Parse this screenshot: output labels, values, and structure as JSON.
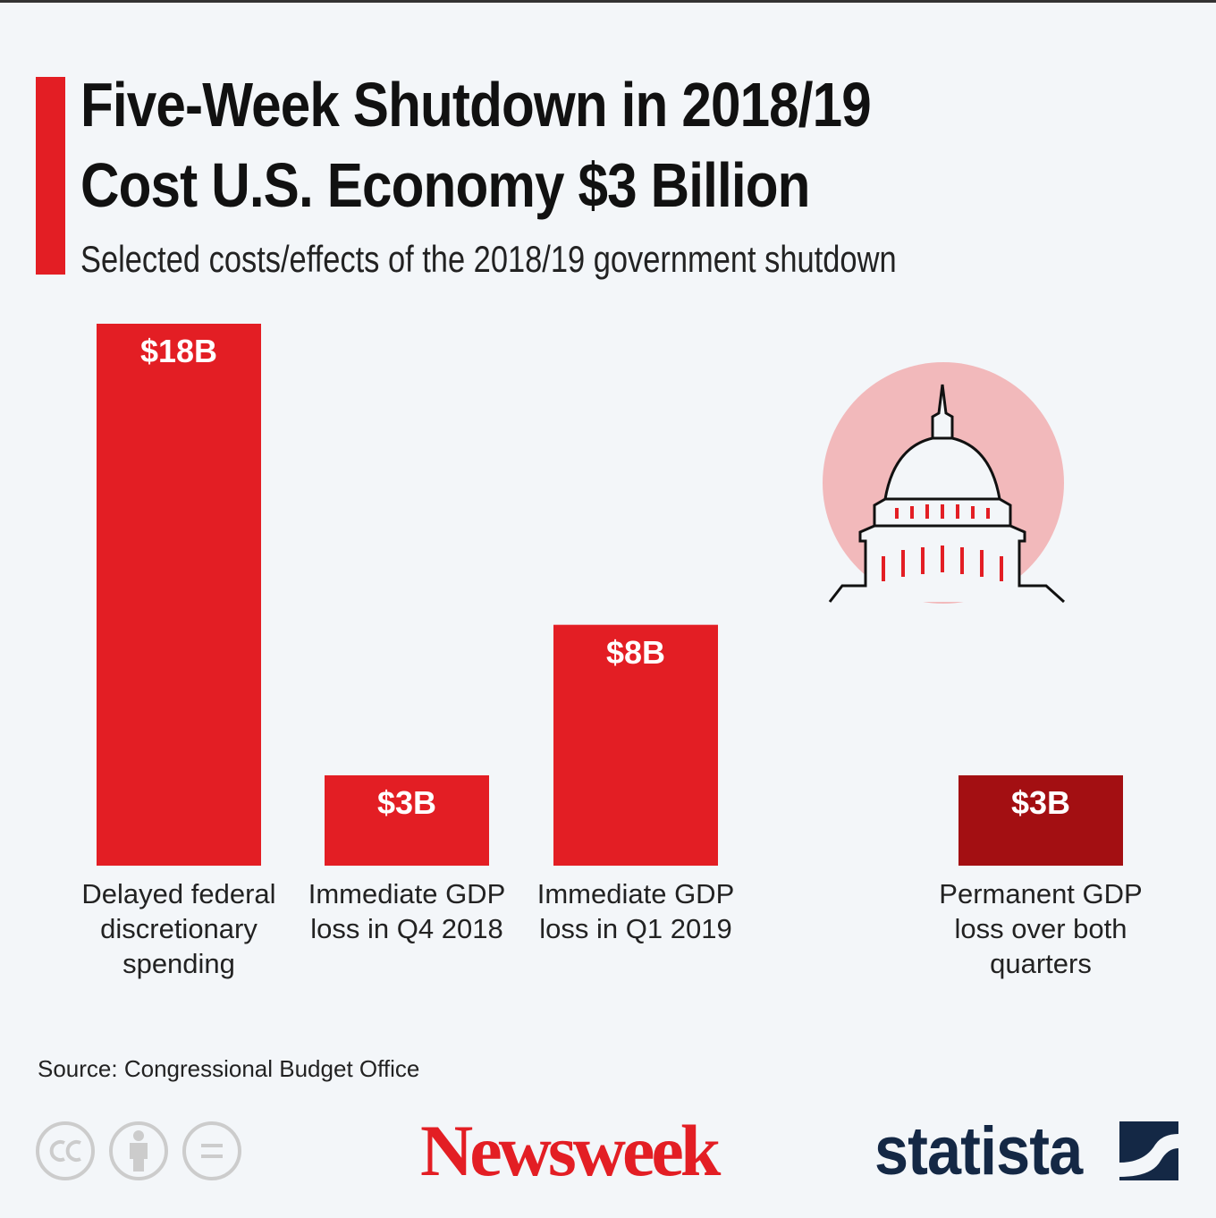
{
  "chart_data": {
    "type": "bar",
    "title": "Five-Week Shutdown in 2018/19 Cost U.S. Economy $3 Billion",
    "subtitle": "Selected costs/effects of the 2018/19 government shutdown",
    "categories": [
      "Delayed federal discretionary spending",
      "Immediate GDP loss in Q4 2018",
      "Immediate GDP loss in Q1 2019",
      "Permanent GDP loss over both quarters"
    ],
    "values": [
      18,
      3,
      8,
      3
    ],
    "value_labels": [
      "$18B",
      "$3B",
      "$8B",
      "$3B"
    ],
    "colors": [
      "#e31e24",
      "#e31e24",
      "#e31e24",
      "#a30f12"
    ],
    "source": "Source: Congressional Budget Office"
  },
  "brands": {
    "newsweek": "Newsweek",
    "statista": "statista"
  }
}
